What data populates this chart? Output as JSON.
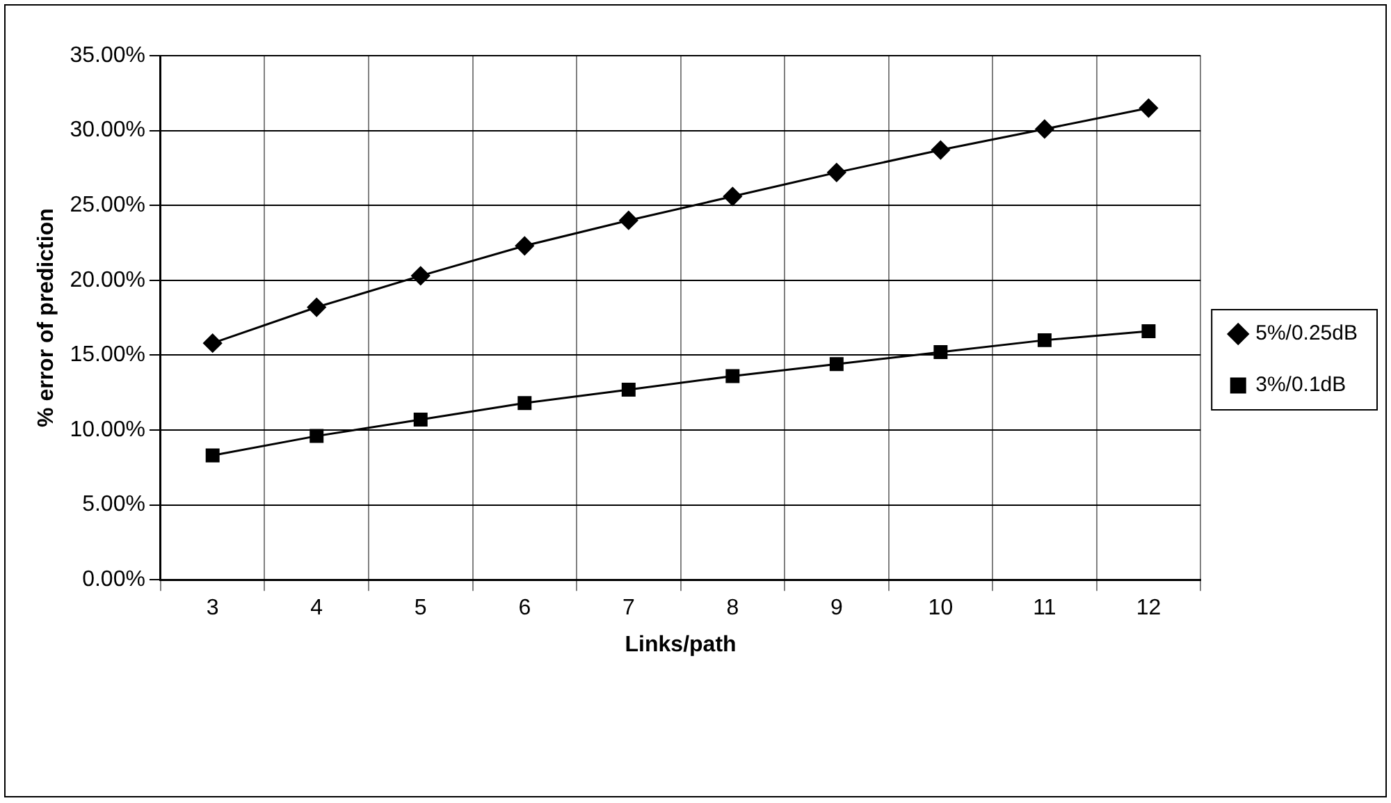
{
  "chart_data": {
    "type": "line",
    "xlabel": "Links/path",
    "ylabel": "% error of prediction",
    "categories": [
      "3",
      "4",
      "5",
      "6",
      "7",
      "8",
      "9",
      "10",
      "11",
      "12"
    ],
    "series": [
      {
        "name": "5%/0.25dB",
        "color": "#000000",
        "marker": "diamond",
        "values": [
          15.8,
          18.2,
          20.3,
          22.3,
          24.0,
          25.6,
          27.2,
          28.7,
          30.1,
          31.5
        ]
      },
      {
        "name": "3%/0.1dB",
        "color": "#000000",
        "marker": "square",
        "values": [
          8.3,
          9.6,
          10.7,
          11.8,
          12.7,
          13.6,
          14.4,
          15.2,
          16.0,
          16.6
        ]
      }
    ],
    "ylim": [
      0,
      35
    ],
    "yticks": [
      {
        "value": 0,
        "label": "0.00%"
      },
      {
        "value": 5,
        "label": "5.00%"
      },
      {
        "value": 10,
        "label": "10.00%"
      },
      {
        "value": 15,
        "label": "15.00%"
      },
      {
        "value": 20,
        "label": "20.00%"
      },
      {
        "value": 25,
        "label": "25.00%"
      },
      {
        "value": 30,
        "label": "30.00%"
      },
      {
        "value": 35,
        "label": "35.00%"
      }
    ],
    "grid": true,
    "legend": "right",
    "line_style": "solid"
  }
}
